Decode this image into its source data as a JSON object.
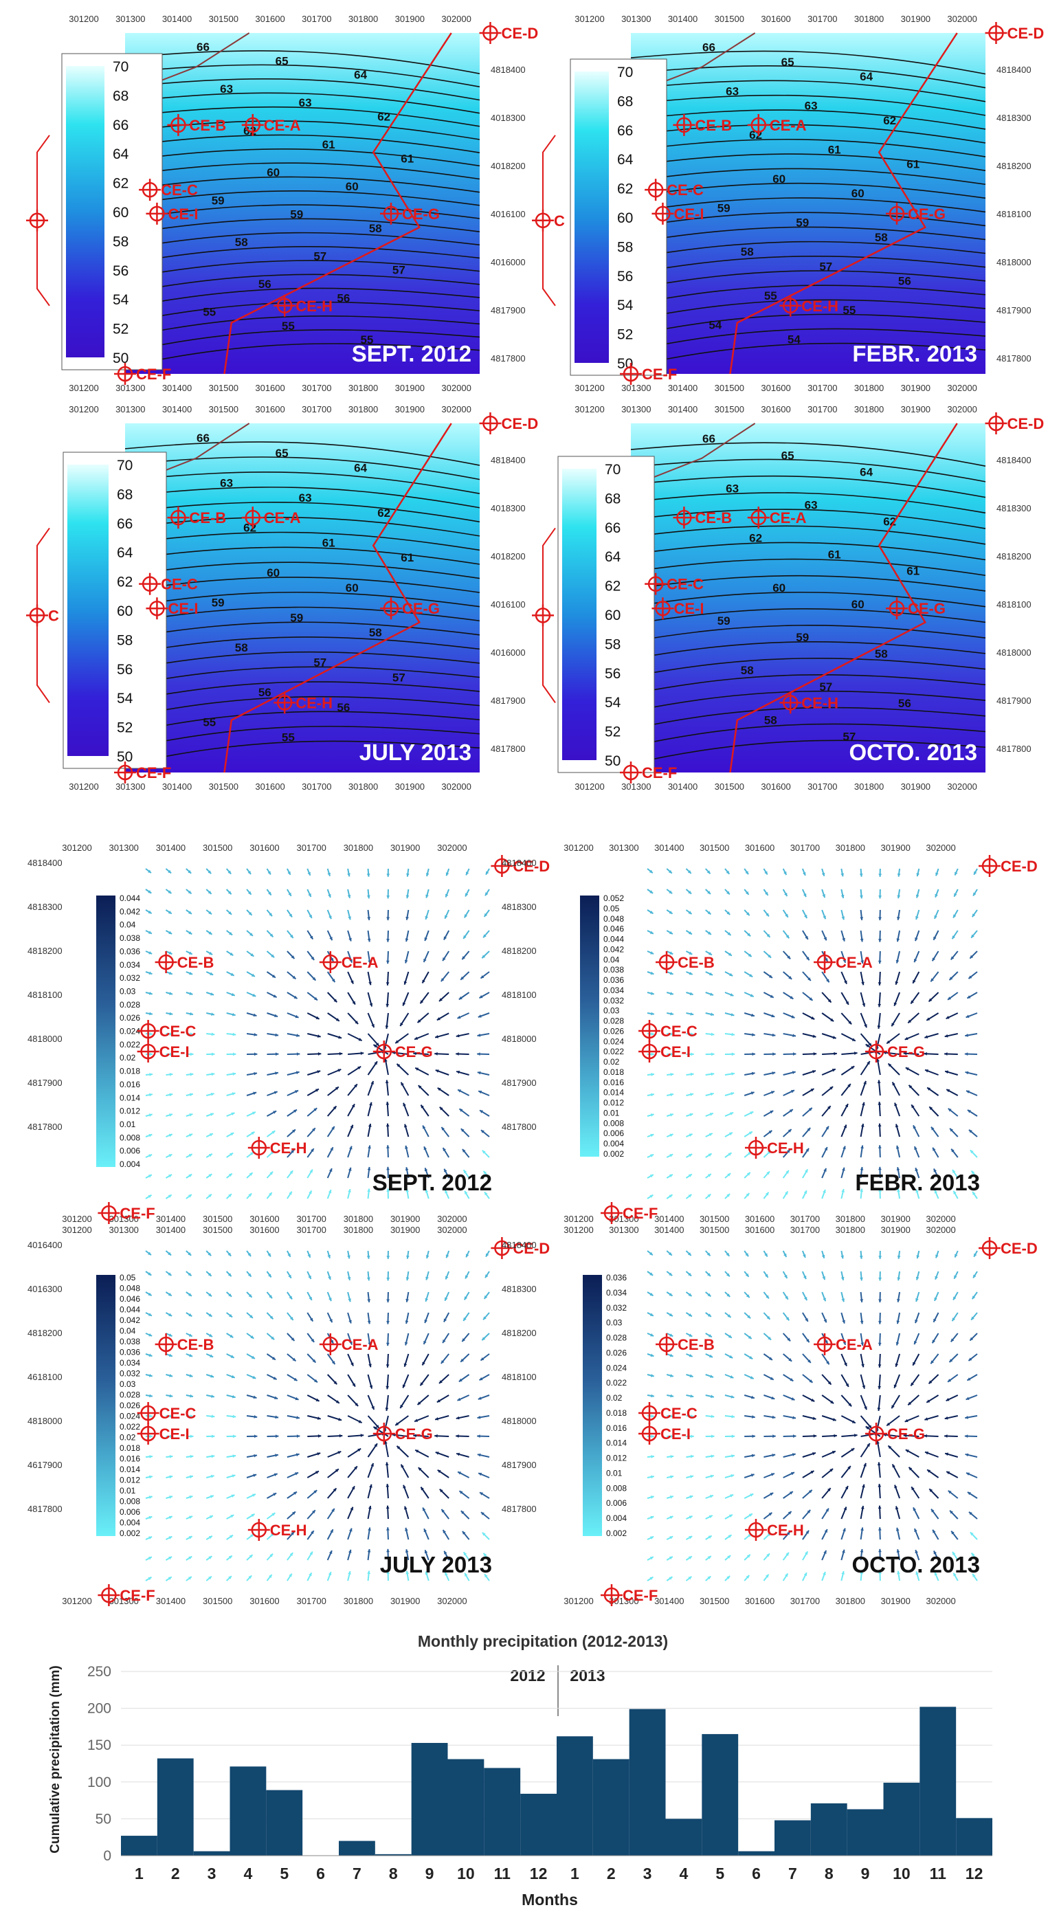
{
  "colors": {
    "map_light": "#b8fbff",
    "map_dark": "#3a10d8",
    "marker": "#e01a1a",
    "bar": "#12476e",
    "arrow_dark": "#0b2157",
    "arrow_light": "#6ee8f2"
  },
  "markers": [
    {
      "id": "ce-a",
      "label": "CE-A"
    },
    {
      "id": "ce-b",
      "label": "CE-B"
    },
    {
      "id": "ce-c",
      "label": "CE-C"
    },
    {
      "id": "ce-d",
      "label": "CE-D"
    },
    {
      "id": "ce-f",
      "label": "CE-F"
    },
    {
      "id": "ce-g",
      "label": "CE-G"
    },
    {
      "id": "ce-h",
      "label": "CE-H"
    },
    {
      "id": "ce-i",
      "label": "CE-I"
    }
  ],
  "head_panels": [
    {
      "title": "SEPT. 2012",
      "contours": [
        "66",
        "65",
        "64",
        "63",
        "63",
        "62",
        "62",
        "61",
        "61",
        "60",
        "60",
        "59",
        "59",
        "58",
        "58",
        "57",
        "57",
        "56",
        "56",
        "55",
        "55",
        "55"
      ],
      "left_label": ""
    },
    {
      "title": "FEBR. 2013",
      "contours": [
        "66",
        "65",
        "64",
        "63",
        "63",
        "62",
        "62",
        "61",
        "61",
        "60",
        "60",
        "59",
        "59",
        "58",
        "58",
        "57",
        "56",
        "55",
        "55",
        "54",
        "54"
      ],
      "left_label": "C"
    },
    {
      "title": "JULY 2013",
      "contours": [
        "66",
        "65",
        "64",
        "63",
        "63",
        "62",
        "62",
        "61",
        "61",
        "60",
        "60",
        "59",
        "59",
        "58",
        "58",
        "57",
        "57",
        "56",
        "56",
        "55",
        "55"
      ],
      "left_label": "C"
    },
    {
      "title": "OCTO. 2013",
      "contours": [
        "66",
        "65",
        "64",
        "63",
        "63",
        "62",
        "62",
        "61",
        "61",
        "60",
        "60",
        "59",
        "59",
        "58",
        "58",
        "57",
        "56",
        "58",
        "57"
      ],
      "left_label": ""
    }
  ],
  "head_colorbar": [
    "70",
    "68",
    "66",
    "64",
    "62",
    "60",
    "58",
    "56",
    "54",
    "52",
    "50"
  ],
  "map_x_ticks": [
    "301200",
    "301300",
    "301400",
    "301500",
    "301600",
    "301700",
    "301800",
    "301900",
    "302000"
  ],
  "map_y_ticks_head": [
    "4818400",
    "4818300",
    "4818200",
    "4818100",
    "4818000",
    "4817900",
    "4817800"
  ],
  "map_y_ticks_head_alt": [
    "4818400",
    "4018300",
    "4018200",
    "4016100",
    "4016000",
    "4817900",
    "4817800"
  ],
  "map_y_ticks_vel": [
    "4818400",
    "4818300",
    "4818200",
    "4818100",
    "4818000",
    "4817900",
    "4817800"
  ],
  "map_y_ticks_vel_alt": [
    "4016400",
    "4016300",
    "4818200",
    "4618100",
    "4818000",
    "4617900",
    "4817800"
  ],
  "vel_panels": [
    {
      "title": "SEPT. 2012",
      "scale": [
        "0.044",
        "0.042",
        "0.04",
        "0.038",
        "0.036",
        "0.034",
        "0.032",
        "0.03",
        "0.028",
        "0.026",
        "0.024",
        "0.022",
        "0.02",
        "0.018",
        "0.016",
        "0.014",
        "0.012",
        "0.01",
        "0.008",
        "0.006",
        "0.004"
      ]
    },
    {
      "title": "FEBR. 2013",
      "scale": [
        "0.052",
        "0.05",
        "0.048",
        "0.046",
        "0.044",
        "0.042",
        "0.04",
        "0.038",
        "0.036",
        "0.034",
        "0.032",
        "0.03",
        "0.028",
        "0.026",
        "0.024",
        "0.022",
        "0.02",
        "0.018",
        "0.016",
        "0.014",
        "0.012",
        "0.01",
        "0.008",
        "0.006",
        "0.004",
        "0.002"
      ]
    },
    {
      "title": "JULY 2013",
      "scale": [
        "0.05",
        "0.048",
        "0.046",
        "0.044",
        "0.042",
        "0.04",
        "0.038",
        "0.036",
        "0.034",
        "0.032",
        "0.03",
        "0.028",
        "0.026",
        "0.024",
        "0.022",
        "0.02",
        "0.018",
        "0.016",
        "0.014",
        "0.012",
        "0.01",
        "0.008",
        "0.006",
        "0.004",
        "0.002"
      ]
    },
    {
      "title": "OCTO. 2013",
      "scale": [
        "0.036",
        "0.034",
        "0.032",
        "0.03",
        "0.028",
        "0.026",
        "0.024",
        "0.022",
        "0.02",
        "0.018",
        "0.016",
        "0.014",
        "0.012",
        "0.01",
        "0.008",
        "0.006",
        "0.004",
        "0.002"
      ]
    }
  ],
  "chart_data": {
    "type": "bar",
    "title": "Monthly precipitation (2012-2013)",
    "xlabel": "Months",
    "ylabel": "Cumulative precipitation (mm)",
    "ylim": [
      0,
      250
    ],
    "yticks": [
      "0",
      "50",
      "100",
      "150",
      "200",
      "250"
    ],
    "year_labels": [
      "2012",
      "2013"
    ],
    "categories": [
      "1",
      "2",
      "3",
      "4",
      "5",
      "6",
      "7",
      "8",
      "9",
      "10",
      "11",
      "12",
      "1",
      "2",
      "3",
      "4",
      "5",
      "6",
      "7",
      "8",
      "9",
      "10",
      "11",
      "12"
    ],
    "values": [
      27,
      132,
      6,
      121,
      89,
      0,
      20,
      2,
      153,
      131,
      119,
      84,
      162,
      131,
      199,
      50,
      165,
      6,
      48,
      71,
      63,
      99,
      202,
      51
    ]
  }
}
